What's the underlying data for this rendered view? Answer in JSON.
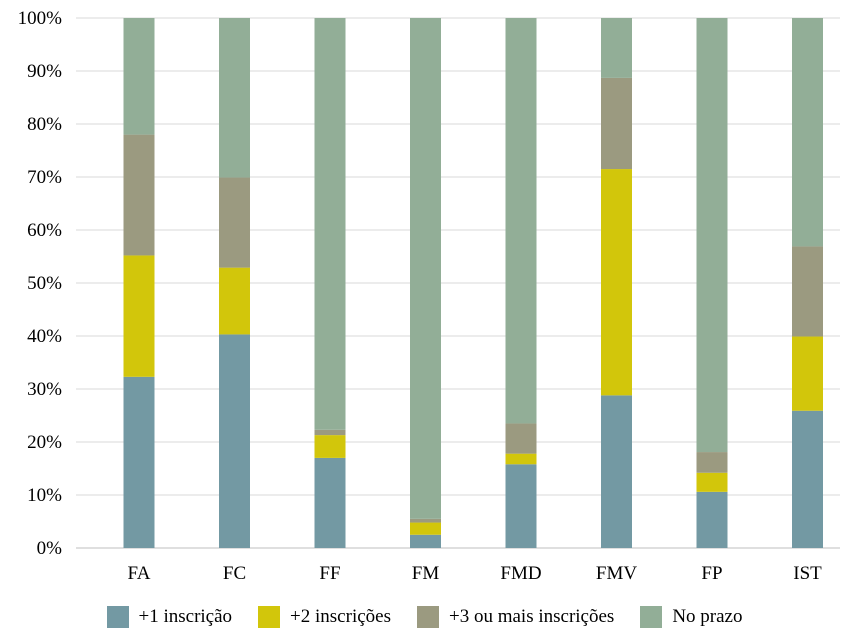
{
  "chart_data": {
    "type": "bar",
    "stacked": true,
    "normalized": true,
    "categories": [
      "FA",
      "FC",
      "FF",
      "FM",
      "FMD",
      "FMV",
      "FP",
      "IST"
    ],
    "series": [
      {
        "name": "+1 inscrição",
        "color": "#7399a3",
        "values": [
          32.3,
          40.3,
          17.0,
          2.5,
          15.8,
          28.8,
          10.6,
          25.9
        ]
      },
      {
        "name": "+2 inscrições",
        "color": "#d2c60b",
        "values": [
          22.9,
          12.6,
          4.3,
          2.3,
          2.0,
          42.7,
          3.6,
          14.0
        ]
      },
      {
        "name": "+3 ou mais inscrições",
        "color": "#9b9a80",
        "values": [
          22.8,
          17.0,
          1.0,
          0.7,
          5.7,
          17.2,
          3.9,
          17.0
        ]
      },
      {
        "name": "No prazo",
        "color": "#92ae97",
        "values": [
          22.0,
          30.1,
          77.7,
          94.5,
          76.5,
          11.3,
          81.9,
          43.1
        ]
      }
    ],
    "ylim": [
      0,
      100
    ],
    "yticks": [
      "0%",
      "10%",
      "20%",
      "30%",
      "40%",
      "50%",
      "60%",
      "70%",
      "80%",
      "90%",
      "100%"
    ],
    "grid": true,
    "legend_position": "bottom"
  }
}
